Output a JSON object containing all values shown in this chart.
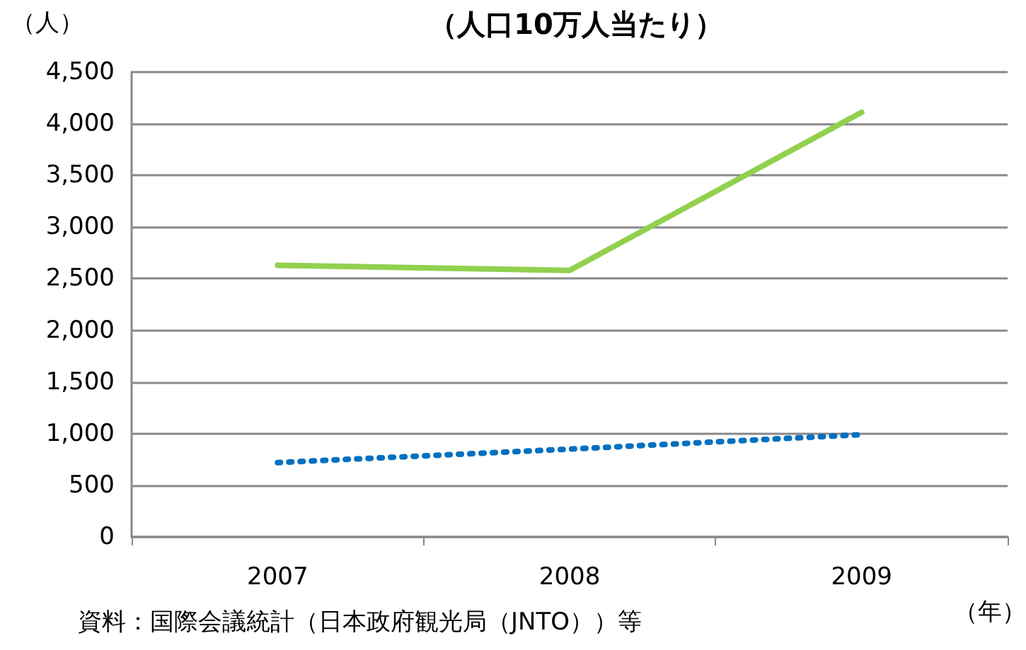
{
  "chart_data": {
    "type": "line",
    "title": "（人口10万人当たり）",
    "ylabel": "（人）",
    "xlabel": "（年）",
    "annotations": [
      "資料：国際会議統計（日本政府観光局（JNTO））等"
    ],
    "categories": [
      "2007",
      "2008",
      "2009"
    ],
    "series": [
      {
        "color": "#92d050",
        "values": [
          2630,
          2580,
          4110
        ],
        "line_style": "solid"
      },
      {
        "color": "#0070c0",
        "values": [
          720,
          850,
          990
        ],
        "line_style": "dotted"
      }
    ],
    "ylim": [
      0,
      4500
    ],
    "yticks": [
      0,
      500,
      {
        "value": 1000,
        "label": "1,000"
      },
      {
        "value": 1500,
        "label": "1,500"
      },
      {
        "value": 2000,
        "label": "2,000"
      },
      {
        "value": 2500,
        "label": "2,500"
      },
      {
        "value": 3000,
        "label": "3,000"
      },
      {
        "value": 3500,
        "label": "3,500"
      },
      {
        "value": 4000,
        "label": "4,000"
      },
      {
        "value": 4500,
        "label": "4,500"
      }
    ],
    "grid": "y",
    "marker": "none"
  }
}
